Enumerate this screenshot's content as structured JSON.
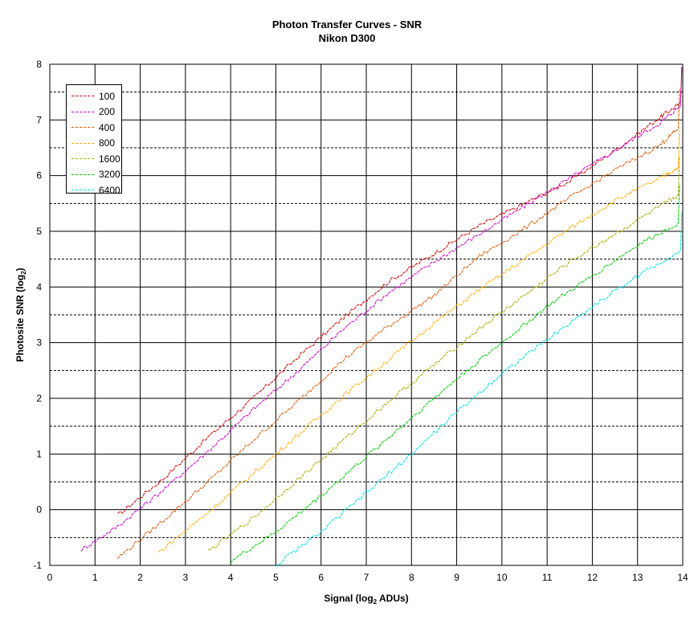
{
  "chart_data": {
    "type": "line",
    "title": "Photon Transfer Curves - SNR",
    "subtitle": "Nikon D300",
    "xlabel": "Signal (log",
    "xlabel_sub": "2",
    "xlabel_end": " ADUs)",
    "ylabel": "Photosite SNR (log",
    "ylabel_sub": "2",
    "ylabel_end": ")",
    "xlim": [
      0,
      14
    ],
    "ylim": [
      -1,
      8
    ],
    "x_ticks": [
      "0",
      "1",
      "2",
      "3",
      "4",
      "5",
      "6",
      "7",
      "8",
      "9",
      "10",
      "11",
      "12",
      "13",
      "14"
    ],
    "y_ticks": [
      "-1",
      "0",
      "1",
      "2",
      "3",
      "4",
      "5",
      "6",
      "7",
      "8"
    ],
    "grid": "major solid, minor dashed",
    "legend_position": "top-left",
    "series": [
      {
        "name": "100",
        "color": "#cc0000",
        "points": [
          [
            1.5,
            -0.1
          ],
          [
            2.5,
            0.55
          ],
          [
            3.5,
            1.3
          ],
          [
            4.5,
            2.0
          ],
          [
            5.5,
            2.75
          ],
          [
            6.5,
            3.45
          ],
          [
            7.5,
            4.1
          ],
          [
            8.5,
            4.6
          ],
          [
            9.5,
            5.1
          ],
          [
            10.5,
            5.5
          ],
          [
            11.5,
            5.9
          ],
          [
            12.5,
            6.45
          ],
          [
            13.5,
            7.05
          ],
          [
            13.95,
            7.3
          ]
        ]
      },
      {
        "name": "200",
        "color": "#cc00cc",
        "points": [
          [
            0.7,
            -0.72
          ],
          [
            1.5,
            -0.3
          ],
          [
            2.5,
            0.35
          ],
          [
            3.5,
            1.05
          ],
          [
            4.5,
            1.8
          ],
          [
            5.5,
            2.5
          ],
          [
            6.5,
            3.25
          ],
          [
            7.5,
            3.9
          ],
          [
            8.5,
            4.45
          ],
          [
            9.5,
            4.95
          ],
          [
            10.5,
            5.45
          ],
          [
            11.5,
            5.95
          ],
          [
            12.5,
            6.45
          ],
          [
            13.5,
            6.95
          ],
          [
            13.95,
            7.25
          ]
        ]
      },
      {
        "name": "400",
        "color": "#dd5500",
        "points": [
          [
            1.5,
            -0.87
          ],
          [
            2.5,
            -0.2
          ],
          [
            3.5,
            0.5
          ],
          [
            4.5,
            1.25
          ],
          [
            5.5,
            1.95
          ],
          [
            6.5,
            2.7
          ],
          [
            7.5,
            3.3
          ],
          [
            8.5,
            3.85
          ],
          [
            9.5,
            4.55
          ],
          [
            10.5,
            5.05
          ],
          [
            11.5,
            5.6
          ],
          [
            12.5,
            6.1
          ],
          [
            13.5,
            6.55
          ],
          [
            13.9,
            6.85
          ]
        ]
      },
      {
        "name": "800",
        "color": "#ffaa00",
        "points": [
          [
            2.4,
            -0.77
          ],
          [
            3.5,
            -0.05
          ],
          [
            4.5,
            0.65
          ],
          [
            5.5,
            1.35
          ],
          [
            6.5,
            2.05
          ],
          [
            7.5,
            2.7
          ],
          [
            8.5,
            3.35
          ],
          [
            9.5,
            3.95
          ],
          [
            10.5,
            4.5
          ],
          [
            11.5,
            5.05
          ],
          [
            12.5,
            5.55
          ],
          [
            13.5,
            5.95
          ],
          [
            13.9,
            6.15
          ]
        ]
      },
      {
        "name": "1600",
        "color": "#aaaa00",
        "points": [
          [
            3.5,
            -0.75
          ],
          [
            4.5,
            -0.15
          ],
          [
            5.5,
            0.55
          ],
          [
            6.5,
            1.25
          ],
          [
            7.5,
            1.95
          ],
          [
            8.5,
            2.6
          ],
          [
            9.5,
            3.25
          ],
          [
            10.5,
            3.85
          ],
          [
            11.5,
            4.45
          ],
          [
            12.5,
            4.95
          ],
          [
            13.5,
            5.45
          ],
          [
            13.9,
            5.65
          ]
        ]
      },
      {
        "name": "3200",
        "color": "#00cc00",
        "points": [
          [
            4.0,
            -0.93
          ],
          [
            5.0,
            -0.4
          ],
          [
            6.0,
            0.25
          ],
          [
            7.0,
            0.95
          ],
          [
            8.0,
            1.65
          ],
          [
            9.0,
            2.35
          ],
          [
            10.0,
            3.0
          ],
          [
            11.0,
            3.65
          ],
          [
            12.0,
            4.2
          ],
          [
            13.0,
            4.75
          ],
          [
            13.9,
            5.15
          ]
        ]
      },
      {
        "name": "6400",
        "color": "#00dddd",
        "points": [
          [
            5.0,
            -1.0
          ],
          [
            6.0,
            -0.4
          ],
          [
            7.0,
            0.3
          ],
          [
            8.0,
            1.0
          ],
          [
            9.0,
            1.75
          ],
          [
            10.0,
            2.45
          ],
          [
            11.0,
            3.05
          ],
          [
            12.0,
            3.65
          ],
          [
            13.0,
            4.2
          ],
          [
            13.95,
            4.65
          ]
        ]
      }
    ]
  }
}
